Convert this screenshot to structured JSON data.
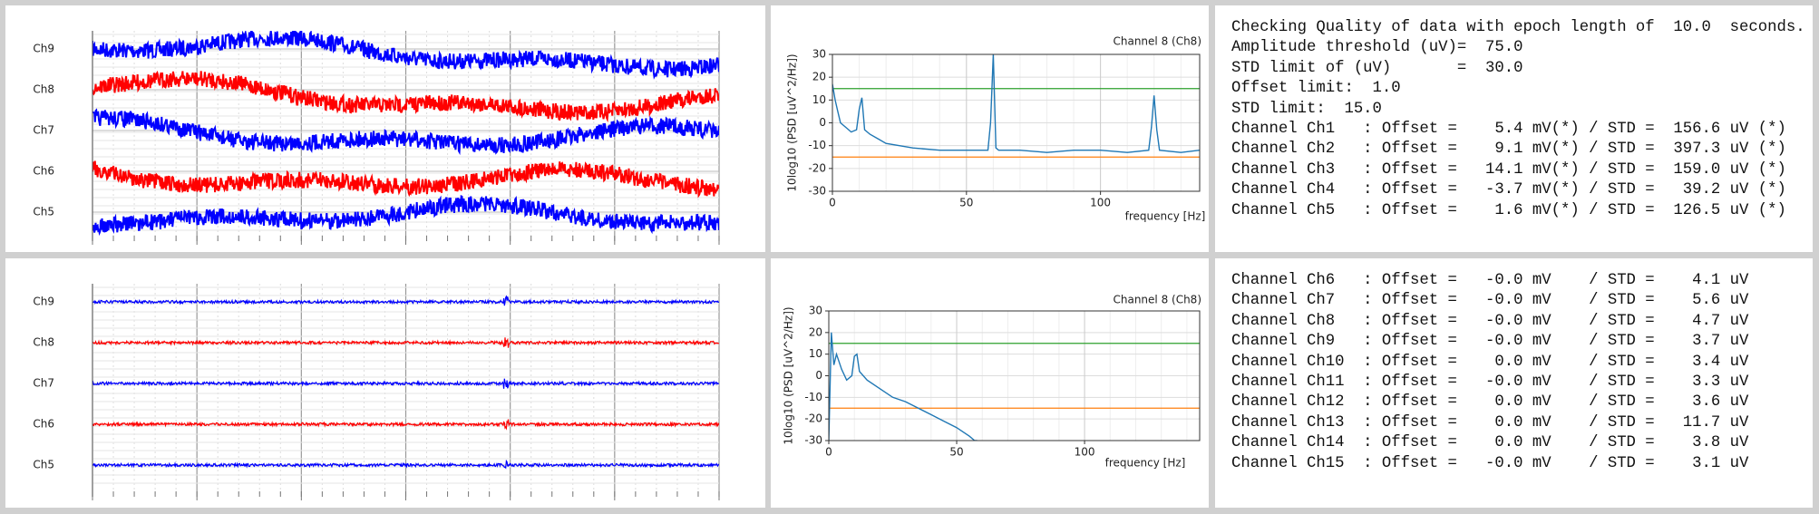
{
  "eeg_top": {
    "channels": [
      "Ch9",
      "Ch8",
      "Ch7",
      "Ch6",
      "Ch5"
    ],
    "colors": [
      "#0000ff",
      "#ff0000",
      "#0000ff",
      "#ff0000",
      "#0000ff"
    ]
  },
  "eeg_bottom": {
    "channels": [
      "Ch9",
      "Ch8",
      "Ch7",
      "Ch6",
      "Ch5"
    ],
    "colors": [
      "#0000ff",
      "#ff0000",
      "#0000ff",
      "#ff0000",
      "#0000ff"
    ]
  },
  "chart_data": [
    {
      "type": "line",
      "title": "Channel 8 (Ch8)",
      "xlabel": "frequency [Hz]",
      "ylabel": "10log10 (PSD [uV^2/Hz])",
      "x": [
        0,
        1,
        2,
        3,
        5,
        7,
        9,
        10,
        11,
        12,
        14,
        17,
        20,
        25,
        30,
        40,
        50,
        58,
        59,
        60,
        61,
        62,
        70,
        80,
        90,
        100,
        110,
        118,
        119,
        120,
        121,
        122,
        130,
        137
      ],
      "values": [
        17,
        10,
        5,
        0,
        -2,
        -4,
        -3,
        6,
        11,
        -3,
        -5,
        -7,
        -9,
        -10,
        -11,
        -12,
        -12,
        -12,
        0,
        30,
        -11,
        -12,
        -12,
        -13,
        -12,
        -12,
        -13,
        -12,
        -2,
        12,
        -3,
        -12,
        -13,
        -12
      ],
      "color": "#1f77b4",
      "hlines": [
        {
          "value": 15,
          "color": "#2ca02c"
        },
        {
          "value": -15,
          "color": "#ff7f0e"
        }
      ],
      "xlim": [
        0,
        137
      ],
      "ylim": [
        -30,
        30
      ],
      "xticks": [
        0,
        50,
        100
      ],
      "yticks": [
        30,
        20,
        10,
        0,
        -10,
        -20,
        -30
      ],
      "grid": true
    },
    {
      "type": "line",
      "title": "Channel 8 (Ch8)",
      "xlabel": "frequency [Hz]",
      "ylabel": "10log10 (PSD [uV^2/Hz])",
      "x": [
        0,
        1,
        2,
        3,
        5,
        7,
        9,
        10,
        11,
        12,
        15,
        20,
        25,
        30,
        35,
        40,
        45,
        50,
        55,
        57,
        58
      ],
      "values": [
        -30,
        20,
        5,
        10,
        3,
        -2,
        0,
        9,
        10,
        2,
        -2,
        -6,
        -10,
        -12,
        -15,
        -18,
        -21,
        -24,
        -28,
        -30,
        -30
      ],
      "color": "#1f77b4",
      "hlines": [
        {
          "value": 15,
          "color": "#2ca02c"
        },
        {
          "value": -15,
          "color": "#ff7f0e"
        }
      ],
      "xlim": [
        0,
        145
      ],
      "ylim": [
        -30,
        30
      ],
      "xticks": [
        0,
        50,
        100
      ],
      "yticks": [
        30,
        20,
        10,
        0,
        -10,
        -20,
        -30
      ],
      "grid": true
    }
  ],
  "text_top": {
    "lines": [
      "Checking Quality of data with epoch length of  10.0  seconds.",
      "Amplitude threshold (uV)=  75.0",
      "STD limit of (uV)       =  30.0",
      "Offset limit:  1.0",
      "STD limit:  15.0",
      "Channel Ch1   : Offset =    5.4 mV(*) / STD =  156.6 uV (*)",
      "Channel Ch2   : Offset =    9.1 mV(*) / STD =  397.3 uV (*)",
      "Channel Ch3   : Offset =   14.1 mV(*) / STD =  159.0 uV (*)",
      "Channel Ch4   : Offset =   -3.7 mV(*) / STD =   39.2 uV (*)",
      "Channel Ch5   : Offset =    1.6 mV(*) / STD =  126.5 uV (*)"
    ]
  },
  "text_bottom": {
    "lines": [
      "Channel Ch6   : Offset =   -0.0 mV    / STD =    4.1 uV",
      "Channel Ch7   : Offset =   -0.0 mV    / STD =    5.6 uV",
      "Channel Ch8   : Offset =   -0.0 mV    / STD =    4.7 uV",
      "Channel Ch9   : Offset =   -0.0 mV    / STD =    3.7 uV",
      "Channel Ch10  : Offset =    0.0 mV    / STD =    3.4 uV",
      "Channel Ch11  : Offset =   -0.0 mV    / STD =    3.3 uV",
      "Channel Ch12  : Offset =    0.0 mV    / STD =    3.6 uV",
      "Channel Ch13  : Offset =    0.0 mV    / STD =   11.7 uV",
      "Channel Ch14  : Offset =    0.0 mV    / STD =    3.8 uV",
      "Channel Ch15  : Offset =   -0.0 mV    / STD =    3.1 uV"
    ]
  }
}
